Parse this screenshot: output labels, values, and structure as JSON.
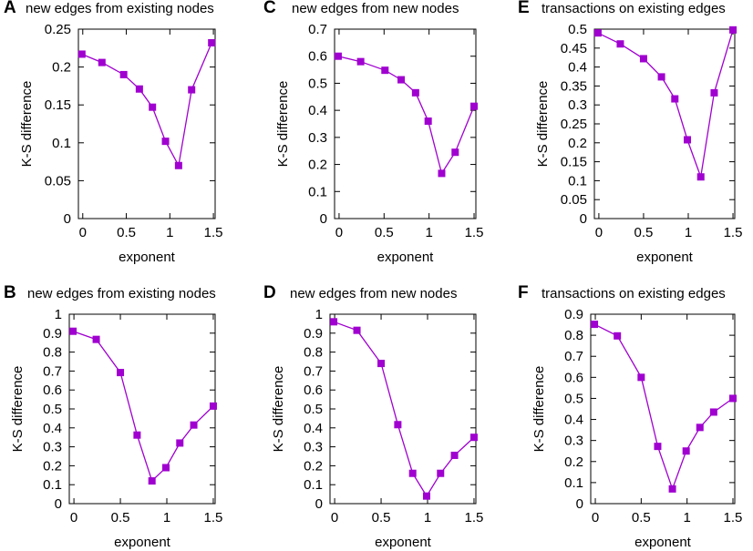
{
  "chart_data": [
    {
      "type": "line",
      "panel": "A",
      "title": "new edges from existing nodes",
      "xlabel": "exponent",
      "ylabel": "K-S difference",
      "xlim": [
        -0.05,
        1.52
      ],
      "ylim": [
        0,
        0.25
      ],
      "xticks": [
        0,
        0.5,
        1,
        1.5
      ],
      "xtick_labels": [
        "0",
        "0.5",
        "1",
        "1.5"
      ],
      "yticks": [
        0,
        0.05,
        0.1,
        0.15,
        0.2,
        0.25
      ],
      "ytick_labels": [
        "0",
        "0.05",
        "0.1",
        "0.15",
        "0.2",
        "0.25"
      ],
      "grid": false,
      "series": [
        {
          "name": "K-S difference",
          "color": "#a000d0",
          "x": [
            -0.01,
            0.22,
            0.47,
            0.65,
            0.8,
            0.95,
            1.1,
            1.25,
            1.48
          ],
          "y": [
            0.217,
            0.206,
            0.19,
            0.171,
            0.147,
            0.102,
            0.07,
            0.17,
            0.232
          ]
        }
      ]
    },
    {
      "type": "line",
      "panel": "C",
      "title": "new edges from new nodes",
      "xlabel": "exponent",
      "ylabel": "K-S difference",
      "xlim": [
        -0.05,
        1.52
      ],
      "ylim": [
        0,
        0.7
      ],
      "xticks": [
        0,
        0.5,
        1,
        1.5
      ],
      "xtick_labels": [
        "0",
        "0.5",
        "1",
        "1.5"
      ],
      "yticks": [
        0,
        0.1,
        0.2,
        0.3,
        0.4,
        0.5,
        0.6,
        0.7
      ],
      "ytick_labels": [
        "0",
        "0.1",
        "0.2",
        "0.3",
        "0.4",
        "0.5",
        "0.6",
        "0.7"
      ],
      "grid": false,
      "series": [
        {
          "name": "K-S difference",
          "color": "#a000d0",
          "x": [
            -0.01,
            0.24,
            0.51,
            0.69,
            0.85,
            0.99,
            1.14,
            1.29,
            1.5
          ],
          "y": [
            0.6,
            0.58,
            0.548,
            0.513,
            0.465,
            0.36,
            0.167,
            0.245,
            0.415
          ]
        }
      ]
    },
    {
      "type": "line",
      "panel": "E",
      "title": "transactions on existing edges",
      "xlabel": "exponent",
      "ylabel": "K-S difference",
      "xlim": [
        -0.05,
        1.52
      ],
      "ylim": [
        0,
        0.5
      ],
      "xticks": [
        0,
        0.5,
        1,
        1.5
      ],
      "xtick_labels": [
        "0",
        "0.5",
        "1",
        "1.5"
      ],
      "yticks": [
        0,
        0.05,
        0.1,
        0.15,
        0.2,
        0.25,
        0.3,
        0.35,
        0.4,
        0.45,
        0.5
      ],
      "ytick_labels": [
        "0",
        "0.05",
        "0.1",
        "0.15",
        "0.2",
        "0.25",
        "0.3",
        "0.35",
        "0.4",
        "0.45",
        "0.5"
      ],
      "grid": false,
      "series": [
        {
          "name": "K-S difference",
          "color": "#a000d0",
          "x": [
            -0.01,
            0.24,
            0.5,
            0.7,
            0.85,
            0.99,
            1.14,
            1.29,
            1.5
          ],
          "y": [
            0.49,
            0.461,
            0.422,
            0.374,
            0.316,
            0.208,
            0.11,
            0.332,
            0.498
          ]
        }
      ]
    },
    {
      "type": "line",
      "panel": "B",
      "title": "new edges from existing nodes",
      "xlabel": "exponent",
      "ylabel": "K-S difference",
      "xlim": [
        -0.05,
        1.52
      ],
      "ylim": [
        0,
        1
      ],
      "xticks": [
        0,
        0.5,
        1,
        1.5
      ],
      "xtick_labels": [
        "0",
        "0.5",
        "1",
        "1.5"
      ],
      "yticks": [
        0,
        0.1,
        0.2,
        0.3,
        0.4,
        0.5,
        0.6,
        0.7,
        0.8,
        0.9,
        1
      ],
      "ytick_labels": [
        "0",
        "0.1",
        "0.2",
        "0.3",
        "0.4",
        "0.5",
        "0.6",
        "0.7",
        "0.8",
        "0.9",
        "1"
      ],
      "grid": false,
      "series": [
        {
          "name": "K-S difference",
          "color": "#a000d0",
          "x": [
            -0.01,
            0.24,
            0.5,
            0.68,
            0.84,
            0.99,
            1.14,
            1.29,
            1.5
          ],
          "y": [
            0.91,
            0.867,
            0.692,
            0.362,
            0.12,
            0.19,
            0.32,
            0.415,
            0.515
          ]
        }
      ]
    },
    {
      "type": "line",
      "panel": "D",
      "title": "new edges from new nodes",
      "xlabel": "exponent",
      "ylabel": "K-S difference",
      "xlim": [
        -0.05,
        1.52
      ],
      "ylim": [
        0,
        1
      ],
      "xticks": [
        0,
        0.5,
        1,
        1.5
      ],
      "xtick_labels": [
        "0",
        "0.5",
        "1",
        "1.5"
      ],
      "yticks": [
        0,
        0.1,
        0.2,
        0.3,
        0.4,
        0.5,
        0.6,
        0.7,
        0.8,
        0.9,
        1
      ],
      "ytick_labels": [
        "0",
        "0.1",
        "0.2",
        "0.3",
        "0.4",
        "0.5",
        "0.6",
        "0.7",
        "0.8",
        "0.9",
        "1"
      ],
      "grid": false,
      "series": [
        {
          "name": "K-S difference",
          "color": "#a000d0",
          "x": [
            -0.01,
            0.24,
            0.5,
            0.68,
            0.84,
            0.99,
            1.14,
            1.29,
            1.5
          ],
          "y": [
            0.96,
            0.915,
            0.74,
            0.417,
            0.16,
            0.04,
            0.16,
            0.255,
            0.35
          ]
        }
      ]
    },
    {
      "type": "line",
      "panel": "F",
      "title": "transactions on existing edges",
      "xlabel": "exponent",
      "ylabel": "K-S difference",
      "xlim": [
        -0.05,
        1.52
      ],
      "ylim": [
        0,
        0.9
      ],
      "xticks": [
        0,
        0.5,
        1,
        1.5
      ],
      "xtick_labels": [
        "0",
        "0.5",
        "1",
        "1.5"
      ],
      "yticks": [
        0,
        0.1,
        0.2,
        0.3,
        0.4,
        0.5,
        0.6,
        0.7,
        0.8,
        0.9
      ],
      "ytick_labels": [
        "0",
        "0.1",
        "0.2",
        "0.3",
        "0.4",
        "0.5",
        "0.6",
        "0.7",
        "0.8",
        "0.9"
      ],
      "grid": false,
      "series": [
        {
          "name": "K-S difference",
          "color": "#a000d0",
          "x": [
            -0.01,
            0.24,
            0.5,
            0.68,
            0.84,
            0.99,
            1.14,
            1.29,
            1.5
          ],
          "y": [
            0.852,
            0.797,
            0.6,
            0.272,
            0.07,
            0.25,
            0.362,
            0.435,
            0.5
          ]
        }
      ]
    }
  ]
}
